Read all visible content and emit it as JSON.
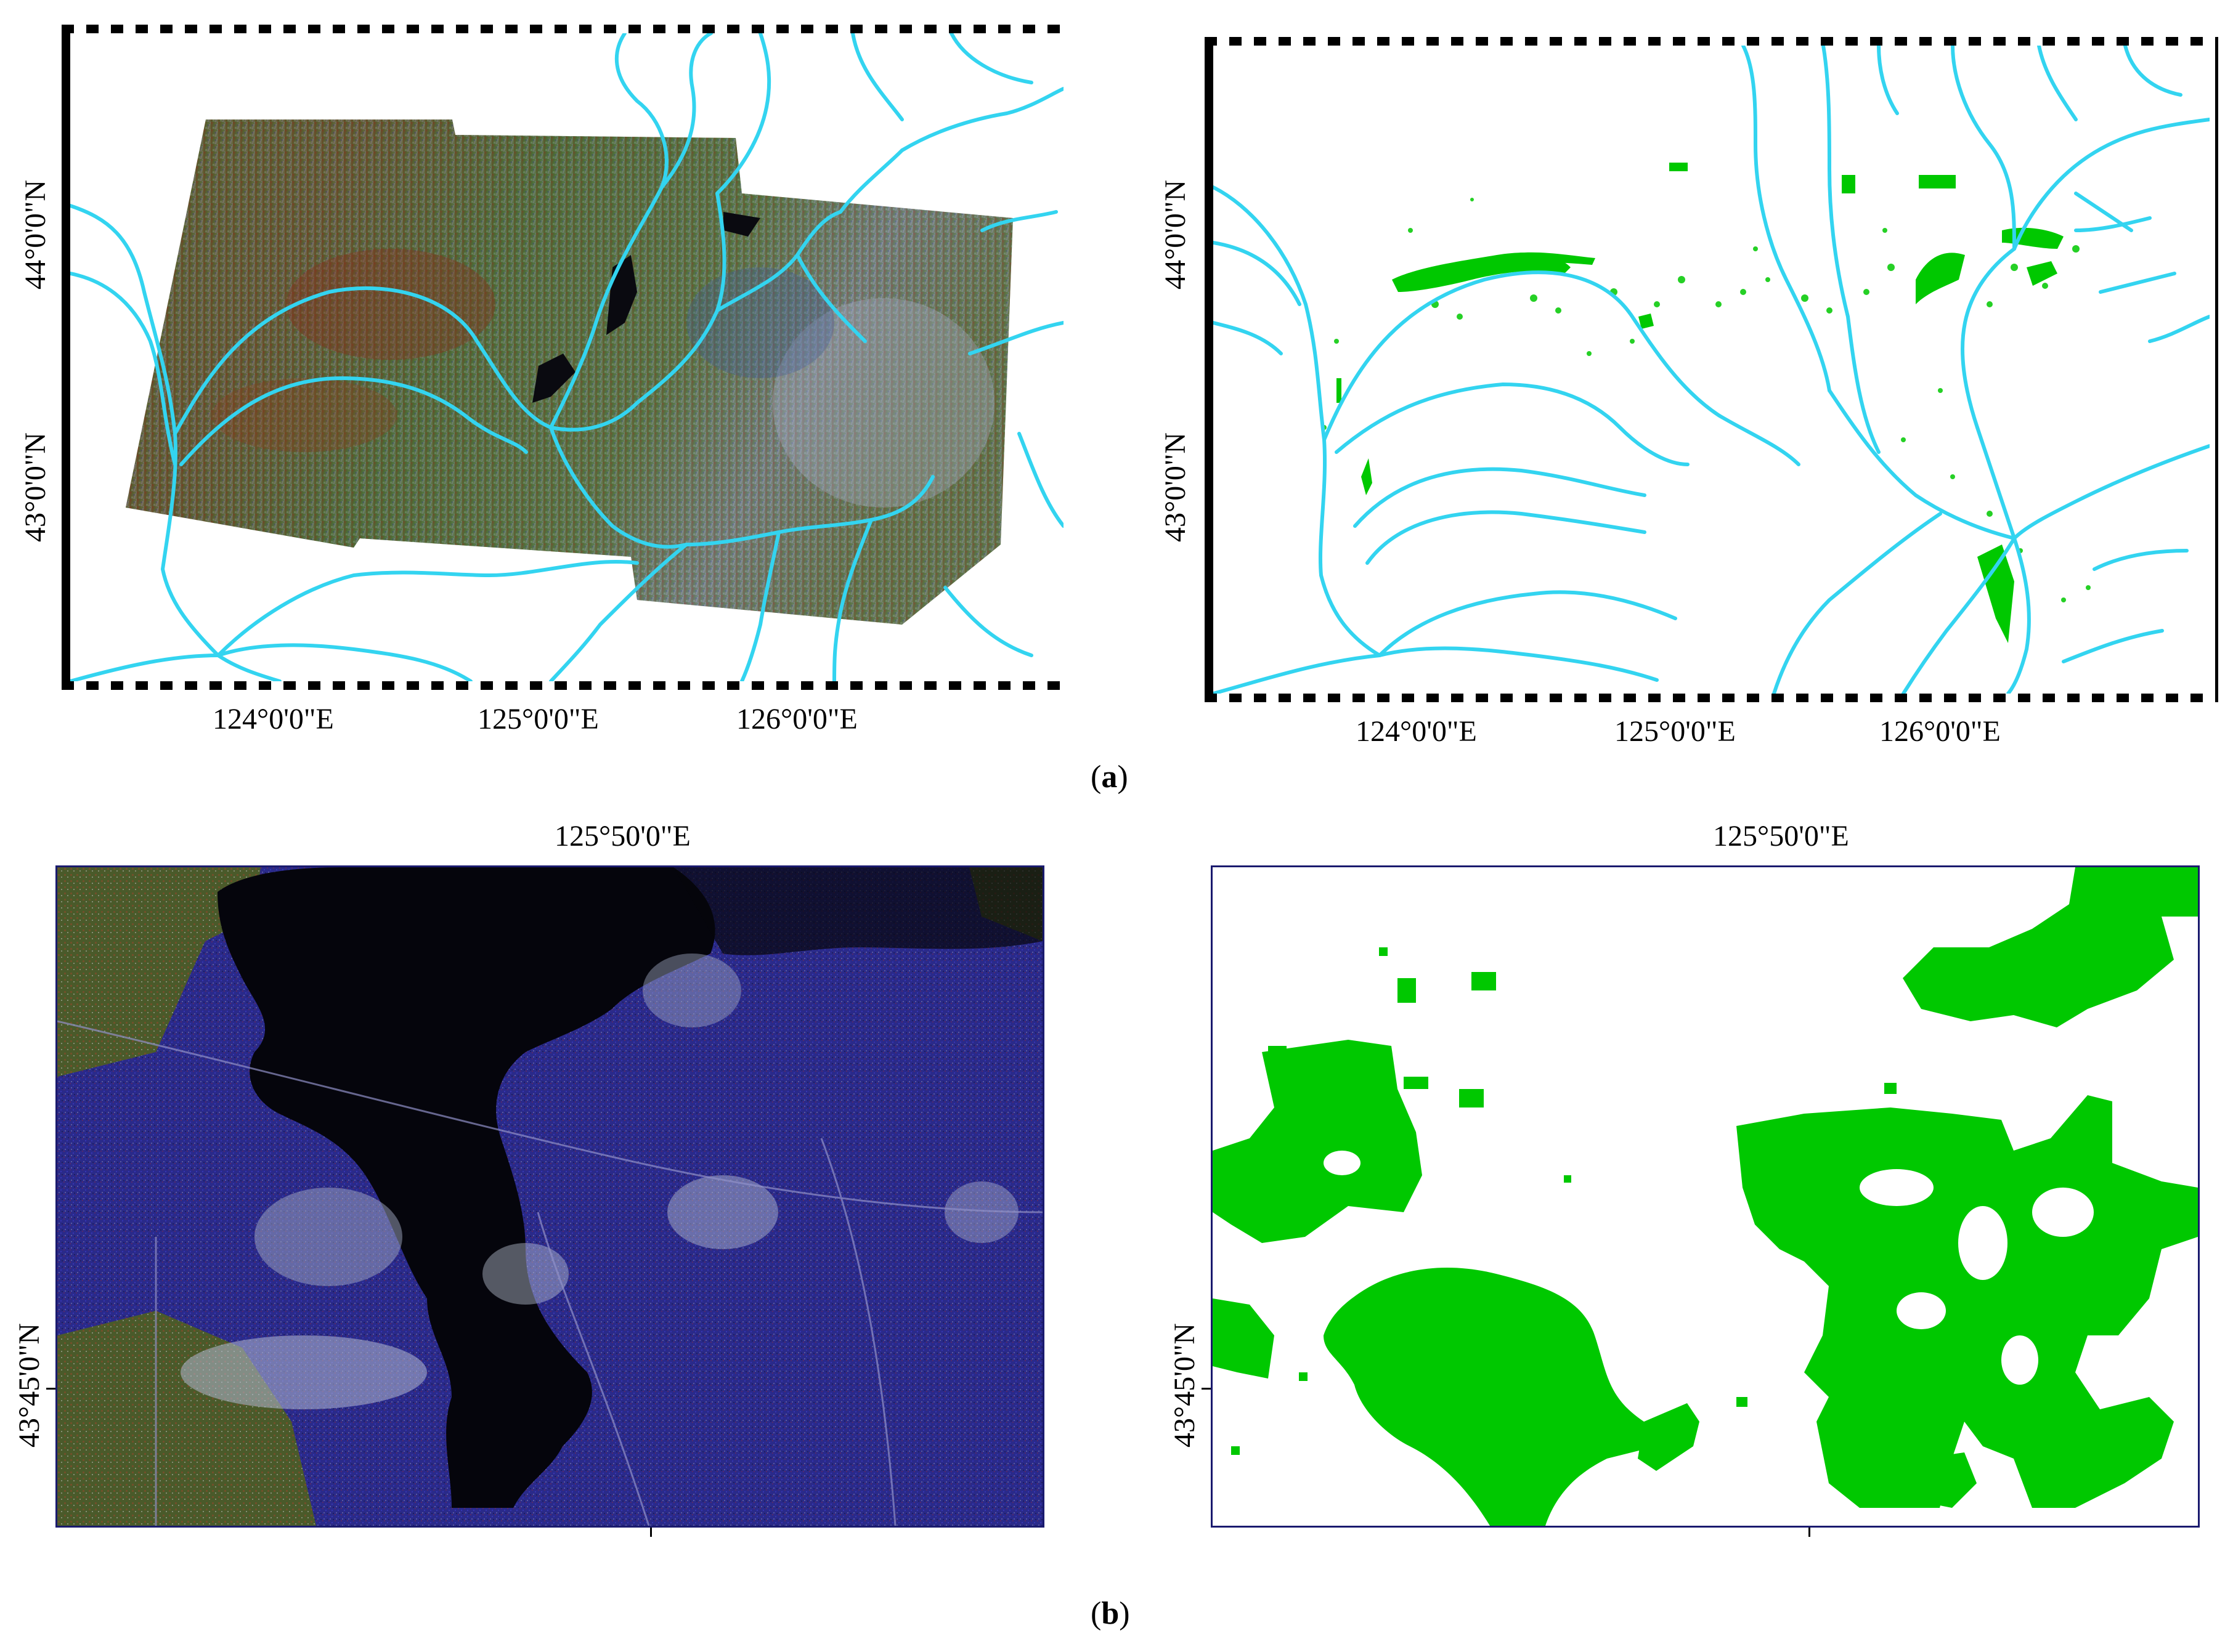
{
  "panel_a": {
    "left": {
      "lat_labels": [
        "44°0'0\"N",
        "43°0'0\"N"
      ],
      "lon_labels": [
        "124°0'0\"E",
        "125°0'0\"E",
        "126°0'0\"E"
      ]
    },
    "right": {
      "lat_labels": [
        "44°0'0\"N",
        "43°0'0\"N"
      ],
      "lon_labels": [
        "124°0'0\"E",
        "125°0'0\"E",
        "126°0'0\"E"
      ]
    },
    "caption_letter": "a",
    "river_color": "#33d4f0",
    "forest_color": "#00c800"
  },
  "panel_b": {
    "left": {
      "top_label": "125°50'0\"E",
      "lat_label": "43°45'0\"N"
    },
    "right": {
      "top_label": "125°50'0\"E",
      "lat_label": "43°45'0\"N"
    },
    "caption_letter": "b",
    "frame_color": "#1a1a6e",
    "forest_color": "#00c800"
  }
}
